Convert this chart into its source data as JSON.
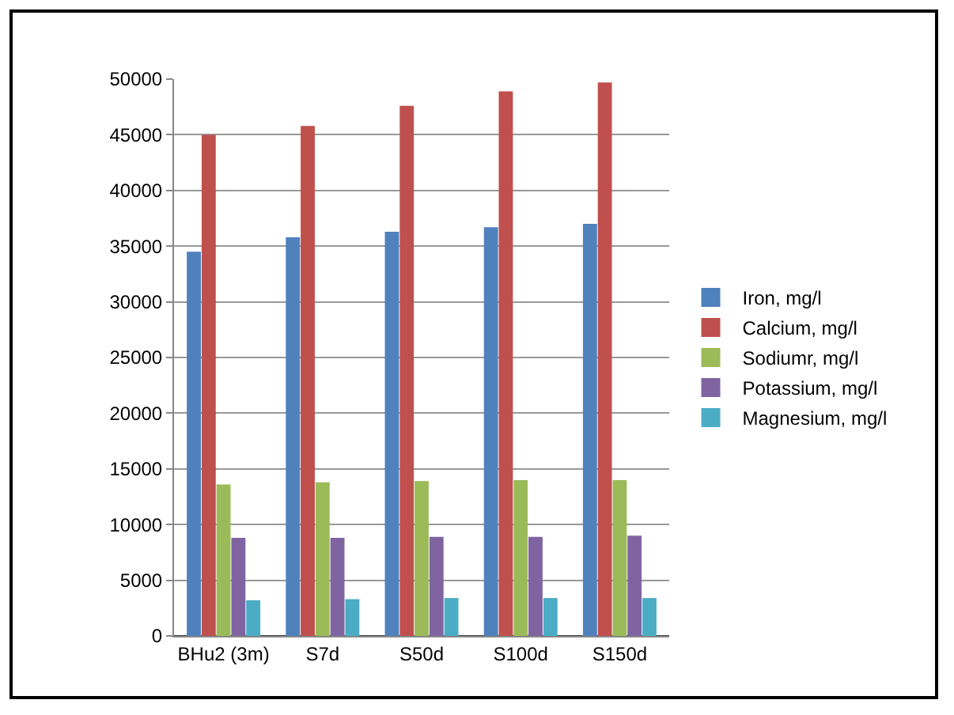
{
  "chart_data": {
    "type": "bar",
    "categories": [
      "BHu2 (3m)",
      "S7d",
      "S50d",
      "S100d",
      "S150d"
    ],
    "series": [
      {
        "name": "Iron, mg/l",
        "color": "#4f81bd",
        "values": [
          34500,
          35800,
          36300,
          36700,
          37000
        ]
      },
      {
        "name": "Calcium, mg/l",
        "color": "#c0504d",
        "values": [
          45000,
          45800,
          47600,
          48900,
          49700
        ]
      },
      {
        "name": "Sodiumr, mg/l",
        "color": "#9bbb59",
        "values": [
          13600,
          13800,
          13900,
          14000,
          14000
        ]
      },
      {
        "name": "Potassium, mg/l",
        "color": "#8064a2",
        "values": [
          8800,
          8800,
          8900,
          8900,
          9000
        ]
      },
      {
        "name": "Magnesium, mg/l",
        "color": "#4bacc6",
        "values": [
          3200,
          3300,
          3400,
          3400,
          3400
        ]
      }
    ],
    "ylim": [
      0,
      50000
    ],
    "yticks": [
      0,
      5000,
      10000,
      15000,
      20000,
      25000,
      30000,
      35000,
      40000,
      45000,
      50000
    ],
    "grid": "y",
    "legend": "right"
  }
}
